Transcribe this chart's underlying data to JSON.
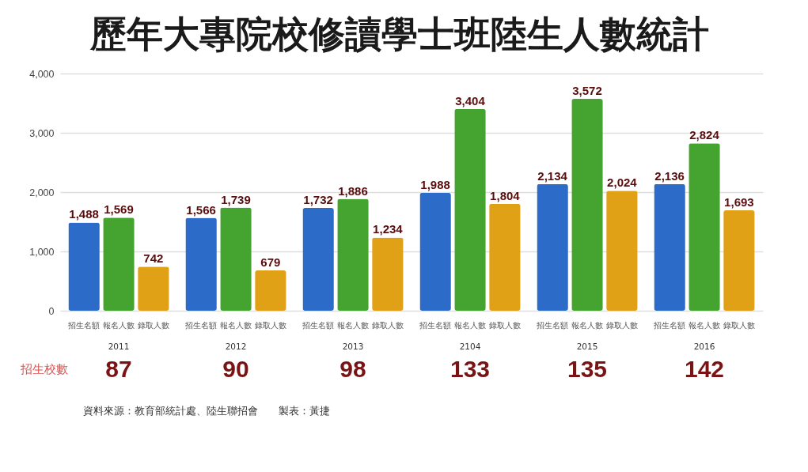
{
  "chart_data": {
    "type": "bar",
    "title": "歷年大專院校修讀學士班陸生人數統計",
    "categories": [
      "2011",
      "2012",
      "2013",
      "2104",
      "2015",
      "2016"
    ],
    "series": [
      {
        "name": "招生名額",
        "color": "#2c6cc8",
        "values": [
          1488,
          1566,
          1732,
          1988,
          2134,
          2136
        ],
        "value_labels": [
          "1,488",
          "1,566",
          "1,732",
          "1,988",
          "2,134",
          "2,136"
        ]
      },
      {
        "name": "報名人數",
        "color": "#45a32f",
        "values": [
          1569,
          1739,
          1886,
          3404,
          3572,
          2824
        ],
        "value_labels": [
          "1,569",
          "1,739",
          "1,886",
          "3,404",
          "3,572",
          "2,824"
        ]
      },
      {
        "name": "錄取人數",
        "color": "#e0a116",
        "values": [
          742,
          679,
          1234,
          1804,
          2024,
          1693
        ],
        "value_labels": [
          "742",
          "679",
          "1,234",
          "1,804",
          "2,024",
          "1,693"
        ]
      }
    ],
    "ylim": [
      0,
      4000
    ],
    "yticks": [
      0,
      {
        "value": 1000,
        "label": "1,000"
      },
      {
        "value": 2000,
        "label": "2,000"
      },
      {
        "value": 3000,
        "label": "3,000"
      },
      {
        "value": 4000,
        "label": "4,000"
      }
    ],
    "grid": "y",
    "annotations": [
      "招生校數",
      "87",
      "90",
      "98",
      "133",
      "135",
      "142",
      "資料來源：教育部統計處、陸生聯招會　　製表：黃捷"
    ]
  }
}
